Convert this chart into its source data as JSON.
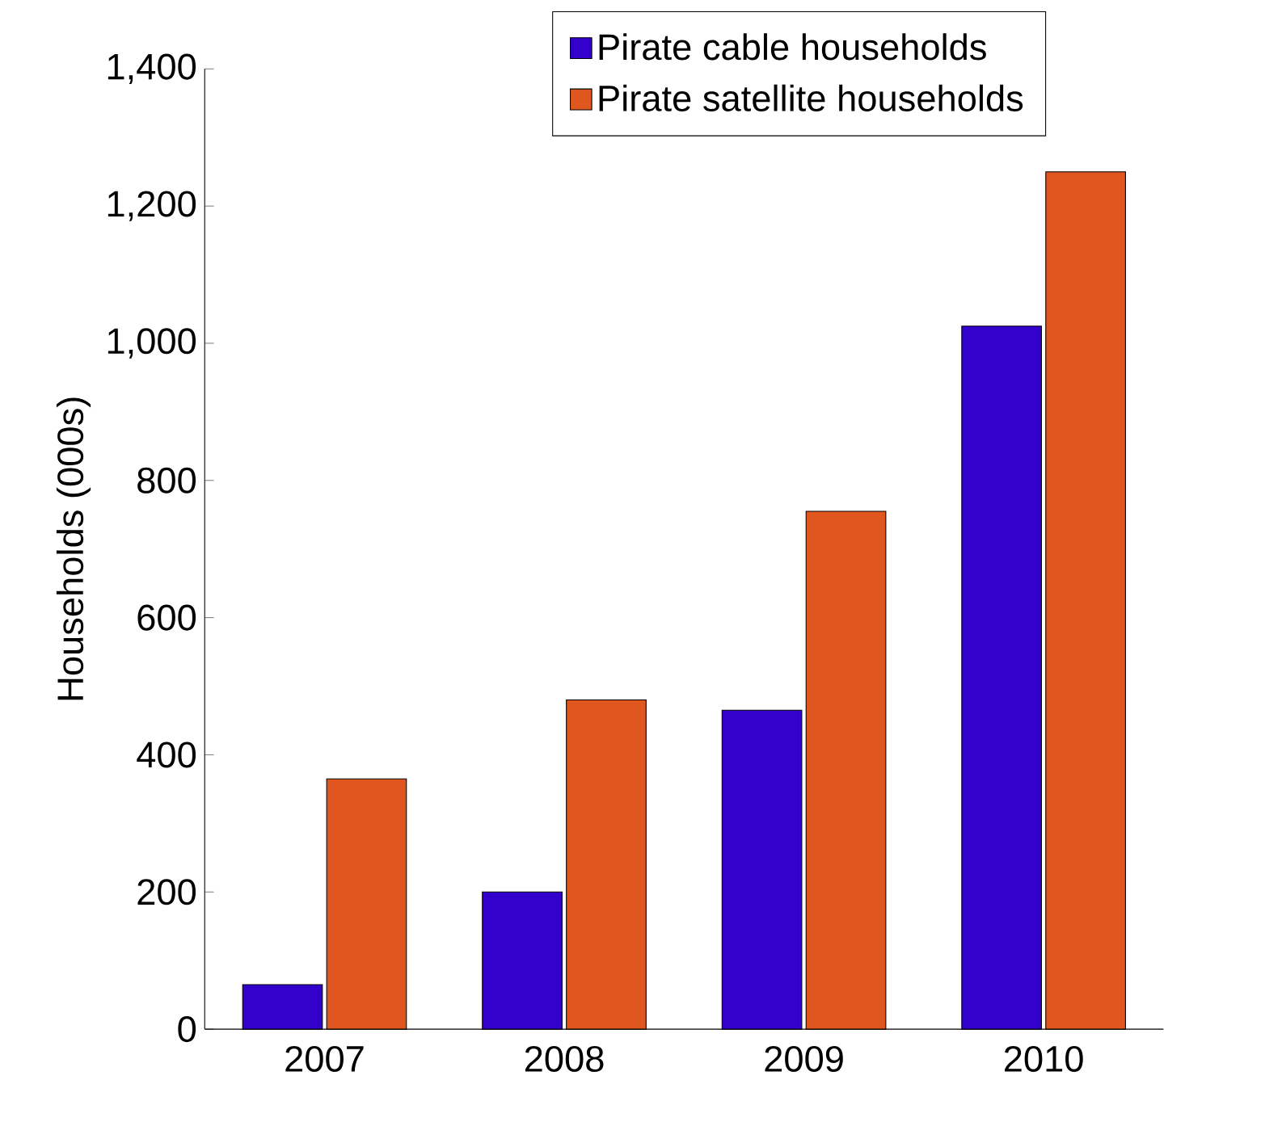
{
  "chart_data": {
    "type": "bar",
    "ylabel": "Households (000s)",
    "categories": [
      "2007",
      "2008",
      "2009",
      "2010"
    ],
    "series": [
      {
        "name": "Pirate cable households",
        "color": "#3300cc",
        "values": [
          65,
          200,
          465,
          1025
        ]
      },
      {
        "name": "Pirate satellite households",
        "color": "#e0561f",
        "values": [
          365,
          480,
          755,
          1250
        ]
      }
    ],
    "ylim": [
      0,
      1400
    ],
    "yticks": [
      {
        "value": 0,
        "label": "0"
      },
      {
        "value": 200,
        "label": "200"
      },
      {
        "value": 400,
        "label": "400"
      },
      {
        "value": 600,
        "label": "600"
      },
      {
        "value": 800,
        "label": "800"
      },
      {
        "value": 1000,
        "label": "1,000"
      },
      {
        "value": 1200,
        "label": "1,200"
      },
      {
        "value": 1400,
        "label": "1,400"
      }
    ],
    "grid": false,
    "legend": "top"
  }
}
